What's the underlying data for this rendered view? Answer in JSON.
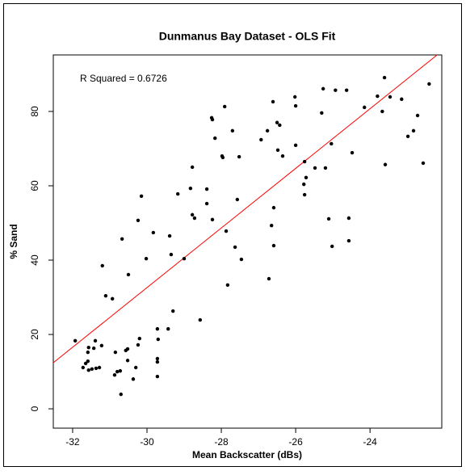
{
  "chart_data": {
    "type": "scatter",
    "title": "Dunmanus Bay Dataset - OLS Fit",
    "x_label": "Mean Backscatter (dBs)",
    "y_label": "% Sand",
    "annotation": "R Squared = 0.6726",
    "color": "#000000",
    "x": [
      -31.93,
      -31.72,
      -31.65,
      -31.59,
      -31.59,
      -31.57,
      -31.57,
      -31.48,
      -31.43,
      -31.39,
      -31.37,
      -31.28,
      -31.22,
      -31.2,
      -31.11,
      -30.93,
      -30.85,
      -30.87,
      -30.8,
      -30.72,
      -30.7,
      -30.67,
      -30.57,
      -30.52,
      -30.52,
      -30.5,
      -30.37,
      -30.3,
      -30.24,
      -30.24,
      -30.2,
      -30.15,
      -30.02,
      -29.83,
      -29.72,
      -29.72,
      -29.72,
      -29.72,
      -29.7,
      -29.39,
      -29.35,
      -29.3,
      -29.17,
      -29.43,
      -29.0,
      -28.83,
      -28.78,
      -28.78,
      -28.72,
      -28.57,
      -28.39,
      -28.39,
      -28.26,
      -28.24,
      -28.24,
      -28.17,
      -27.98,
      -27.96,
      -27.91,
      -27.87,
      -27.83,
      -27.7,
      -27.63,
      -27.57,
      -27.52,
      -27.46,
      -26.93,
      -26.76,
      -26.72,
      -26.65,
      -26.61,
      -26.59,
      -26.59,
      -26.5,
      -26.48,
      -26.43,
      -26.35,
      -26.02,
      -26.0,
      -26.0,
      -25.78,
      -25.76,
      -25.72,
      -25.76,
      -25.48,
      -25.3,
      -25.26,
      -25.2,
      -25.11,
      -25.04,
      -25.02,
      -24.93,
      -24.63,
      -24.57,
      -24.57,
      -24.48,
      -24.15,
      -23.8,
      -23.67,
      -23.61,
      -23.59,
      -23.46,
      -23.15,
      -22.98,
      -22.83,
      -22.72,
      -22.57,
      -22.41
    ],
    "values": [
      18.3,
      11.1,
      12.2,
      12.8,
      15.2,
      16.5,
      10.4,
      10.7,
      16.3,
      18.3,
      10.9,
      11.1,
      17.0,
      38.5,
      30.4,
      29.6,
      15.2,
      9.1,
      10.0,
      10.2,
      3.9,
      45.7,
      15.7,
      16.1,
      13.0,
      36.1,
      8.0,
      11.1,
      17.2,
      50.7,
      18.9,
      57.2,
      40.4,
      47.4,
      21.5,
      12.6,
      13.5,
      8.7,
      18.7,
      46.5,
      41.5,
      26.3,
      57.8,
      21.5,
      40.4,
      59.3,
      65.0,
      52.2,
      51.3,
      23.9,
      59.1,
      55.2,
      78.3,
      77.8,
      50.9,
      72.8,
      68.0,
      67.6,
      81.3,
      47.8,
      33.3,
      74.8,
      43.5,
      56.3,
      67.8,
      40.2,
      72.4,
      74.8,
      35.0,
      49.3,
      82.6,
      54.1,
      43.9,
      77.0,
      69.6,
      76.3,
      68.0,
      83.9,
      81.5,
      70.9,
      60.4,
      66.5,
      62.2,
      57.6,
      64.8,
      79.6,
      86.1,
      64.8,
      51.1,
      71.3,
      43.7,
      85.7,
      85.7,
      51.3,
      45.2,
      68.9,
      81.1,
      84.1,
      80.0,
      89.1,
      65.7,
      83.9,
      83.3,
      73.3,
      74.8,
      78.9,
      66.1,
      87.4
    ],
    "fit_line": {
      "color": "#ff0000",
      "x": [
        -32.52,
        -22.07
      ],
      "values": [
        12.4,
        96.2
      ]
    },
    "xlim": [
      -32.52,
      -22.07
    ],
    "ylim": [
      -5.2,
      95.2
    ],
    "xticks": [
      -32,
      -30,
      -28,
      -26,
      -24
    ],
    "yticks": [
      0,
      20,
      40,
      60,
      80
    ]
  }
}
